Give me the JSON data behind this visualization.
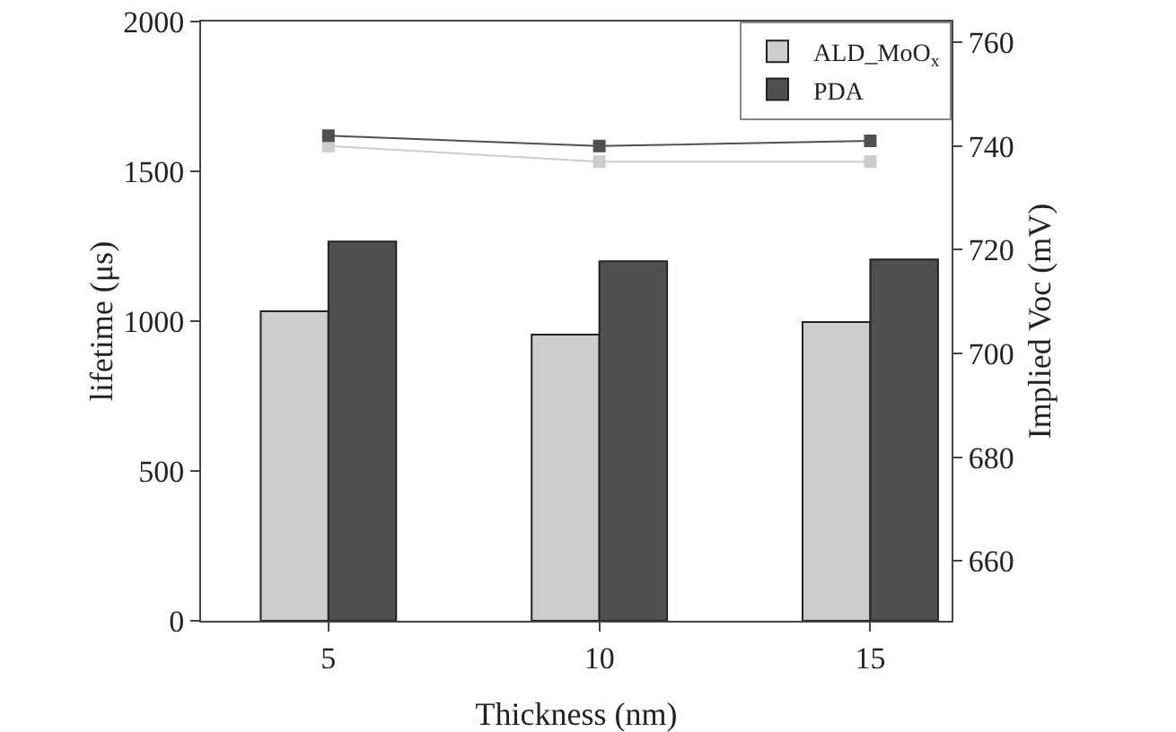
{
  "chart_data": {
    "type": "bar",
    "categories": [
      "5",
      "10",
      "15"
    ],
    "xlabel": "Thickness (nm)",
    "ylabel": "lifetime (μs)",
    "y2label": "Implied Voc (mV)",
    "series": [
      {
        "name": "ALD_MoO$_{x}$",
        "color": "#cccccc",
        "values": [
          1033,
          955,
          997
        ]
      },
      {
        "name": "PDA",
        "color": "#505050",
        "values": [
          1266,
          1200,
          1206
        ]
      },
      {
        "type": "line",
        "axis": "y2",
        "color": "#cccccc",
        "values": [
          740,
          737,
          737
        ]
      },
      {
        "type": "line",
        "axis": "y2",
        "color": "#505050",
        "values": [
          742,
          740,
          741
        ]
      }
    ],
    "ylim": [
      0,
      2000
    ],
    "yticks": [
      0,
      500,
      1000,
      1500,
      2000
    ],
    "y2lim": [
      648.5,
      764
    ],
    "y2ticks": [
      660,
      680,
      700,
      720,
      740,
      760
    ],
    "marker": "square",
    "line_style": "solid",
    "grid": false,
    "legend": "top right"
  }
}
